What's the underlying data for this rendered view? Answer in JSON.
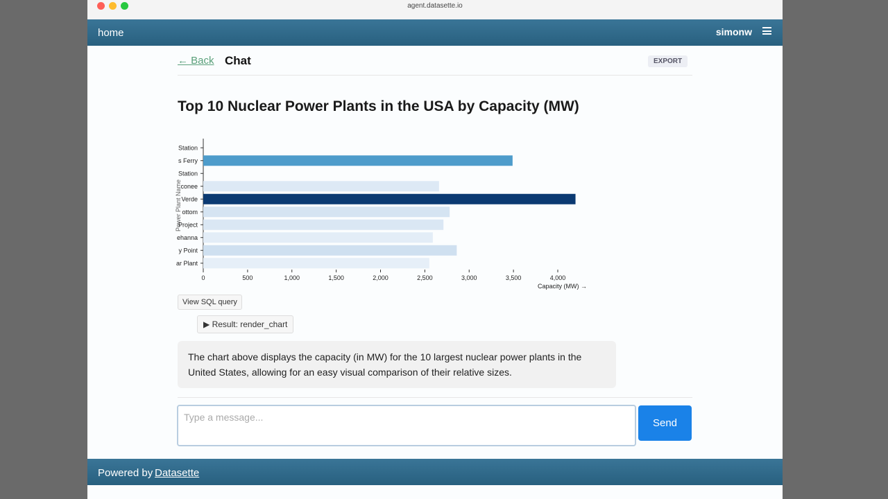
{
  "browser": {
    "url": "agent.datasette.io"
  },
  "nav": {
    "home": "home",
    "user": "simonw"
  },
  "chat": {
    "back": "← Back",
    "title": "Chat",
    "export": "EXPORT"
  },
  "chart_data": {
    "type": "bar",
    "orientation": "horizontal",
    "title": "Top 10 Nuclear Power Plants in the USA by Capacity (MW)",
    "categories": [
      "Station",
      "s Ferry",
      "Station",
      "conee",
      "Verde",
      "ottom",
      "Project",
      "ehanna",
      "y Point",
      "ar Plant"
    ],
    "values": [
      null,
      3490,
      null,
      2660,
      4200,
      2780,
      2710,
      2590,
      2860,
      2550
    ],
    "colors": [
      "#e8f0f8",
      "#4e9ccb",
      "#e8f0f8",
      "#dde9f5",
      "#0b3a72",
      "#d5e4f2",
      "#dae7f4",
      "#e3edf7",
      "#cfe0f0",
      "#e6eff8"
    ],
    "xlim": [
      0,
      4300
    ],
    "xticks": [
      0,
      500,
      {
        "value": 1000,
        "label": "1,000"
      },
      {
        "value": 1500,
        "label": "1,500"
      },
      {
        "value": 2000,
        "label": "2,000"
      },
      {
        "value": 2500,
        "label": "2,500"
      },
      {
        "value": 3000,
        "label": "3,000"
      },
      {
        "value": 3500,
        "label": "3,500"
      },
      {
        "value": 4000,
        "label": "4,000"
      }
    ],
    "x_label": "Capacity (MW) →",
    "y_label": "Power Plant Name"
  },
  "buttons": {
    "sql": "View SQL query",
    "result": "▶ Result: render_chart"
  },
  "message": "The chart above displays the capacity (in MW) for the 10 largest nuclear power plants in the United States, allowing for an easy visual comparison of their relative sizes.",
  "input": {
    "placeholder": "Type a message...",
    "send": "Send"
  },
  "footer": {
    "prefix": "Powered by",
    "link": "Datasette"
  }
}
